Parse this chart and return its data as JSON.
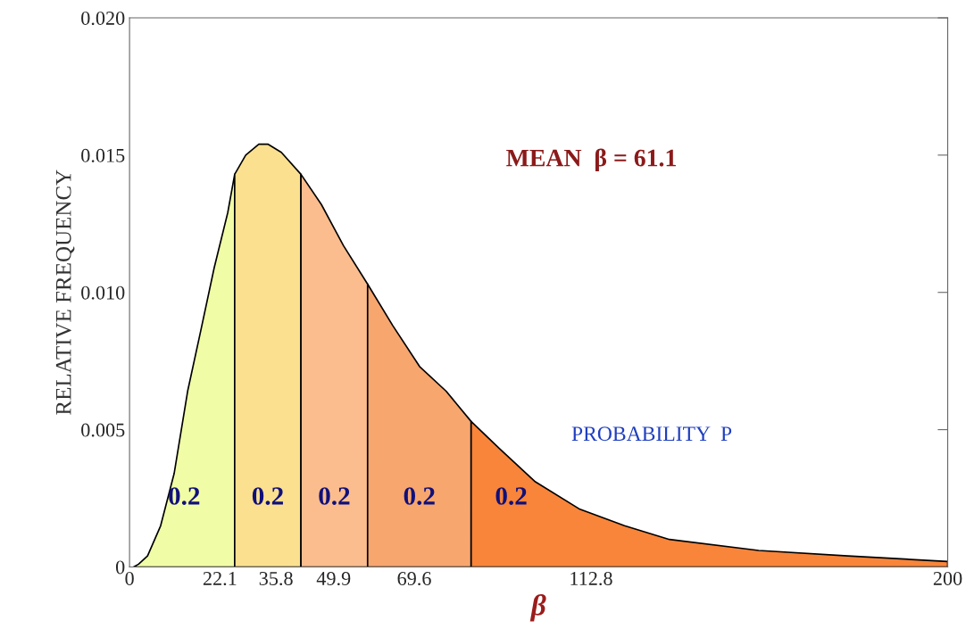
{
  "chart_data": {
    "type": "area",
    "xlabel": "β",
    "ylabel": "RELATIVE FREQUENCY",
    "xlim": [
      0,
      200
    ],
    "ylim": [
      0,
      0.02
    ],
    "xticks": [
      0,
      22.1,
      35.8,
      49.9,
      69.6,
      112.8,
      200
    ],
    "yticks": [
      {
        "value": 0,
        "label": "0"
      },
      0.005,
      {
        "value": 0.01,
        "label": "0.010"
      },
      0.015,
      {
        "value": 0.02,
        "label": "0.020"
      }
    ],
    "grid": false,
    "series": [
      {
        "color": "#f1fca6",
        "x": [
          1,
          2.2,
          4.4,
          7.6,
          10.9,
          14.2,
          17.4,
          20.7,
          24.0,
          25.7
        ],
        "values": [
          0,
          0.0001,
          0.0004,
          0.0015,
          0.0034,
          0.0064,
          0.0086,
          0.0109,
          0.0129,
          0.0143
        ]
      },
      {
        "color": "#fbe08f",
        "x": [
          25.7,
          28.4,
          31.6,
          33.8,
          37.1,
          41.9
        ],
        "values": [
          0.0143,
          0.015,
          0.0154,
          0.0154,
          0.0151,
          0.0143
        ]
      },
      {
        "color": "#fbbd8e",
        "x": [
          41.9,
          46.9,
          52.3,
          58.2
        ],
        "values": [
          0.0143,
          0.0132,
          0.0117,
          0.0103
        ]
      },
      {
        "color": "#f7a66e",
        "x": [
          58.2,
          64.3,
          70.9,
          77.4,
          83.5
        ],
        "values": [
          0.0103,
          0.0088,
          0.0073,
          0.0064,
          0.0053
        ]
      },
      {
        "color": "#f8853a",
        "x": [
          83.5,
          90.5,
          99.2,
          110.1,
          121.0,
          132.0,
          153.8,
          175.6,
          200
        ],
        "values": [
          0.0053,
          0.0043,
          0.0031,
          0.0021,
          0.0015,
          0.001,
          0.0006,
          0.0004,
          0.0002
        ]
      }
    ],
    "annotations": [
      "0.2",
      "0.2",
      "0.2",
      "0.2",
      "0.2",
      "MEAN  β = 61.1",
      "PROBABILITY  P"
    ]
  }
}
